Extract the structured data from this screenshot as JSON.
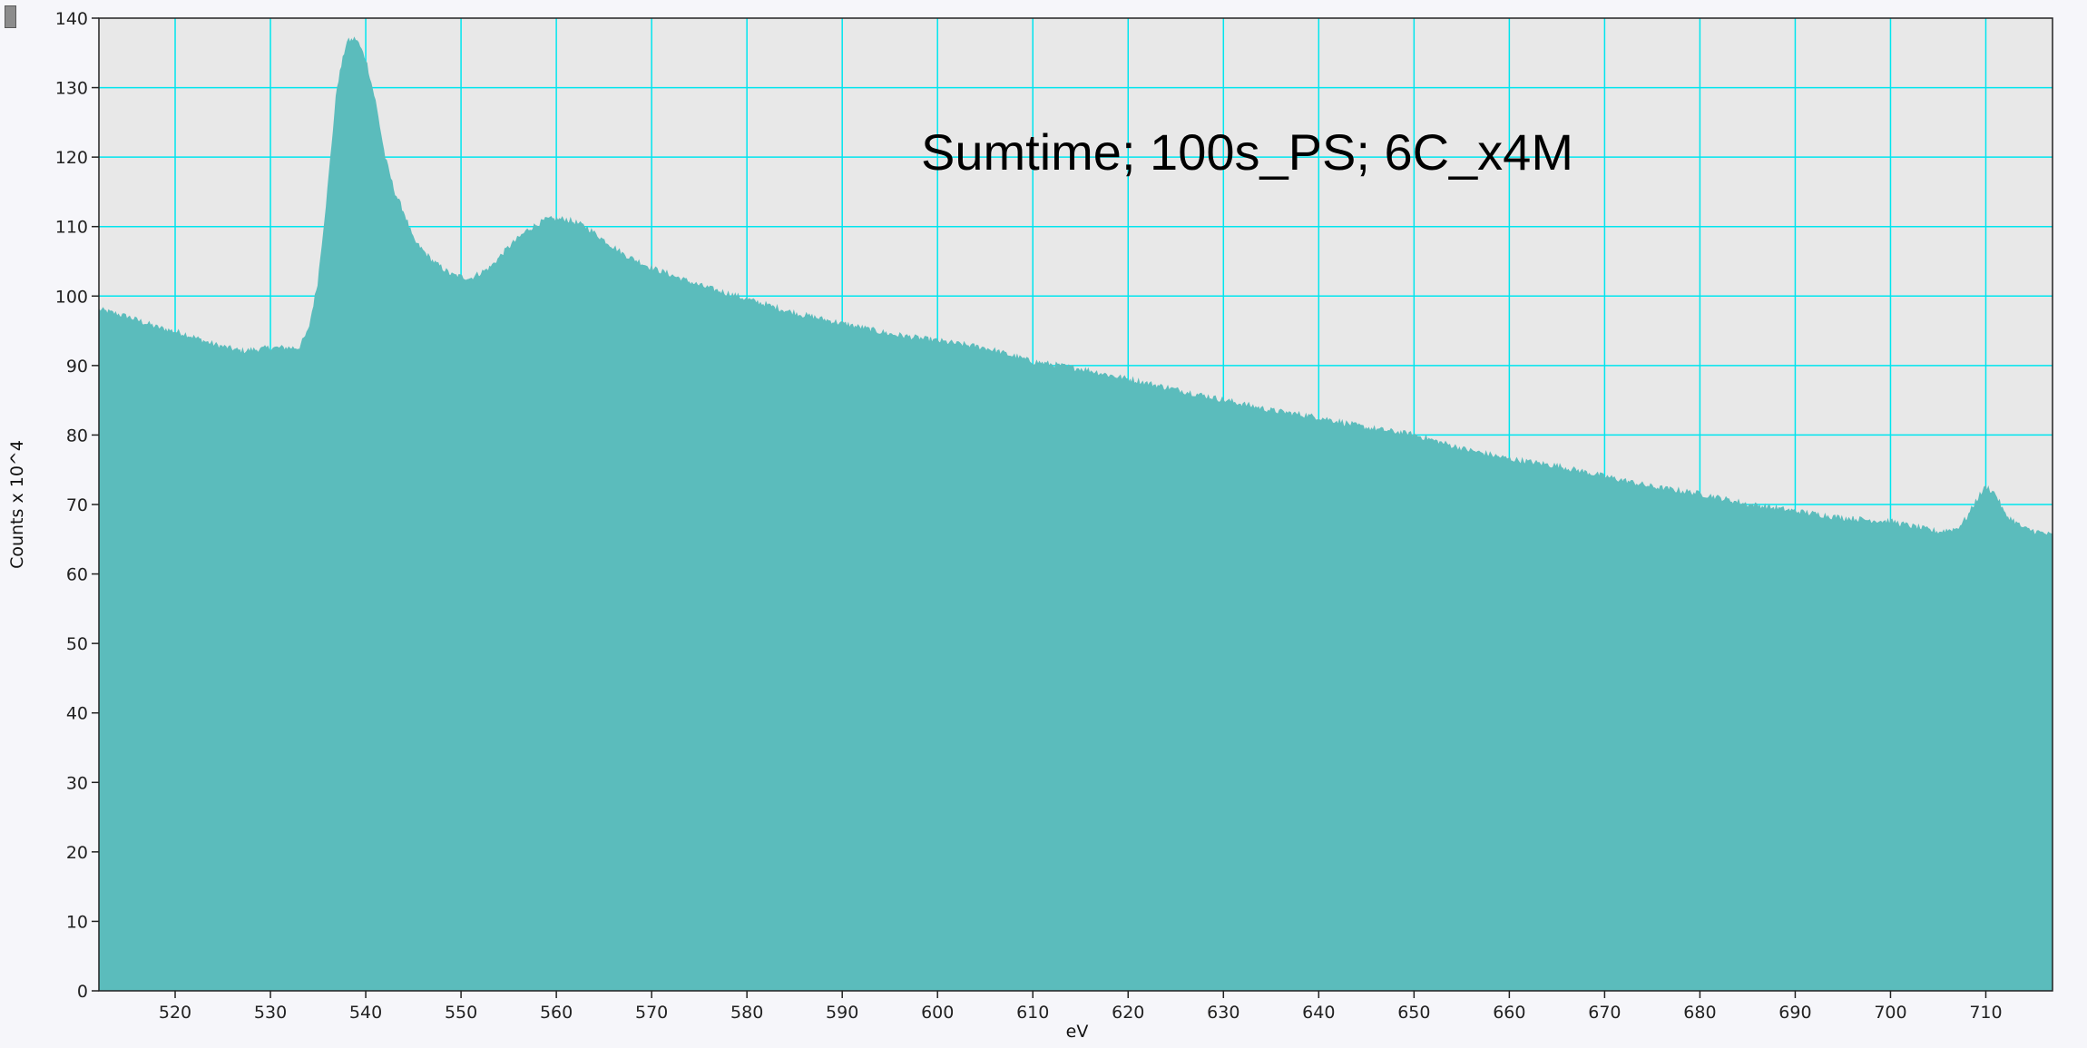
{
  "window": {
    "handle_icon": "resize-grip-icon"
  },
  "colors": {
    "fill": "#5bbcbc",
    "plot_background": "#e8e8e8",
    "grid": "#00e5ee",
    "frame": "#222222"
  },
  "chart_data": {
    "type": "area",
    "title": "",
    "annotation": "Sumtime; 100s_PS; 6C_x4M",
    "xlabel": "eV",
    "ylabel": "Counts x 10^4",
    "xlim": [
      512,
      717
    ],
    "ylim": [
      0,
      140
    ],
    "grid": true,
    "x_ticks": [
      520,
      530,
      540,
      550,
      560,
      570,
      580,
      590,
      600,
      610,
      620,
      630,
      640,
      650,
      660,
      670,
      680,
      690,
      700,
      710
    ],
    "y_ticks": [
      0,
      10,
      20,
      30,
      40,
      50,
      60,
      70,
      80,
      90,
      100,
      110,
      120,
      130,
      140
    ],
    "series": [
      {
        "x": [
          512,
          515,
          518,
          521,
          524,
          527,
          530,
          533,
          534,
          535,
          536,
          537,
          538,
          539,
          540,
          541,
          542,
          543,
          544,
          545,
          547,
          549,
          551,
          553,
          555,
          557,
          559,
          561,
          563,
          565,
          567,
          570,
          575,
          580,
          585,
          590,
          595,
          600,
          605,
          610,
          615,
          620,
          625,
          630,
          635,
          640,
          645,
          650,
          655,
          660,
          665,
          670,
          675,
          680,
          685,
          690,
          695,
          700,
          705,
          707,
          708,
          709,
          710,
          711,
          712,
          713,
          714,
          717
        ],
        "y": [
          98,
          97,
          95.5,
          94.5,
          93,
          92,
          92.5,
          92.5,
          95,
          102,
          115,
          130,
          136.5,
          137,
          134,
          128,
          120,
          115,
          112,
          108,
          105,
          103,
          102.5,
          104,
          107,
          109.5,
          111,
          111,
          110,
          108,
          106,
          104,
          101.5,
          99.5,
          97.5,
          96,
          94.5,
          93.5,
          92.5,
          90.5,
          89.5,
          88,
          86.5,
          85,
          83.5,
          82.5,
          81,
          80,
          78,
          76.5,
          75.5,
          74,
          72.5,
          71.5,
          70,
          69,
          68,
          67.5,
          66,
          66.5,
          68,
          70.5,
          72.5,
          71.5,
          68.5,
          67.5,
          66.5,
          65.5
        ]
      }
    ]
  }
}
